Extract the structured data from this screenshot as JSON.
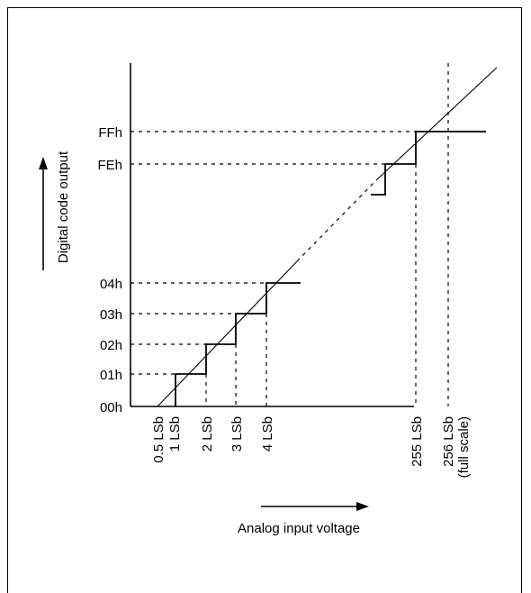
{
  "diagram": {
    "y_axis_title": "Digital code output",
    "x_axis_title": "Analog input voltage",
    "y_ticks": [
      "00h",
      "01h",
      "02h",
      "03h",
      "04h",
      "FEh",
      "FFh"
    ],
    "x_ticks": [
      "0.5 LSb",
      "1 LSb",
      "2 LSb",
      "3 LSb",
      "4 LSb",
      "255 LSb",
      "256 LSb",
      "(full scale)"
    ]
  }
}
